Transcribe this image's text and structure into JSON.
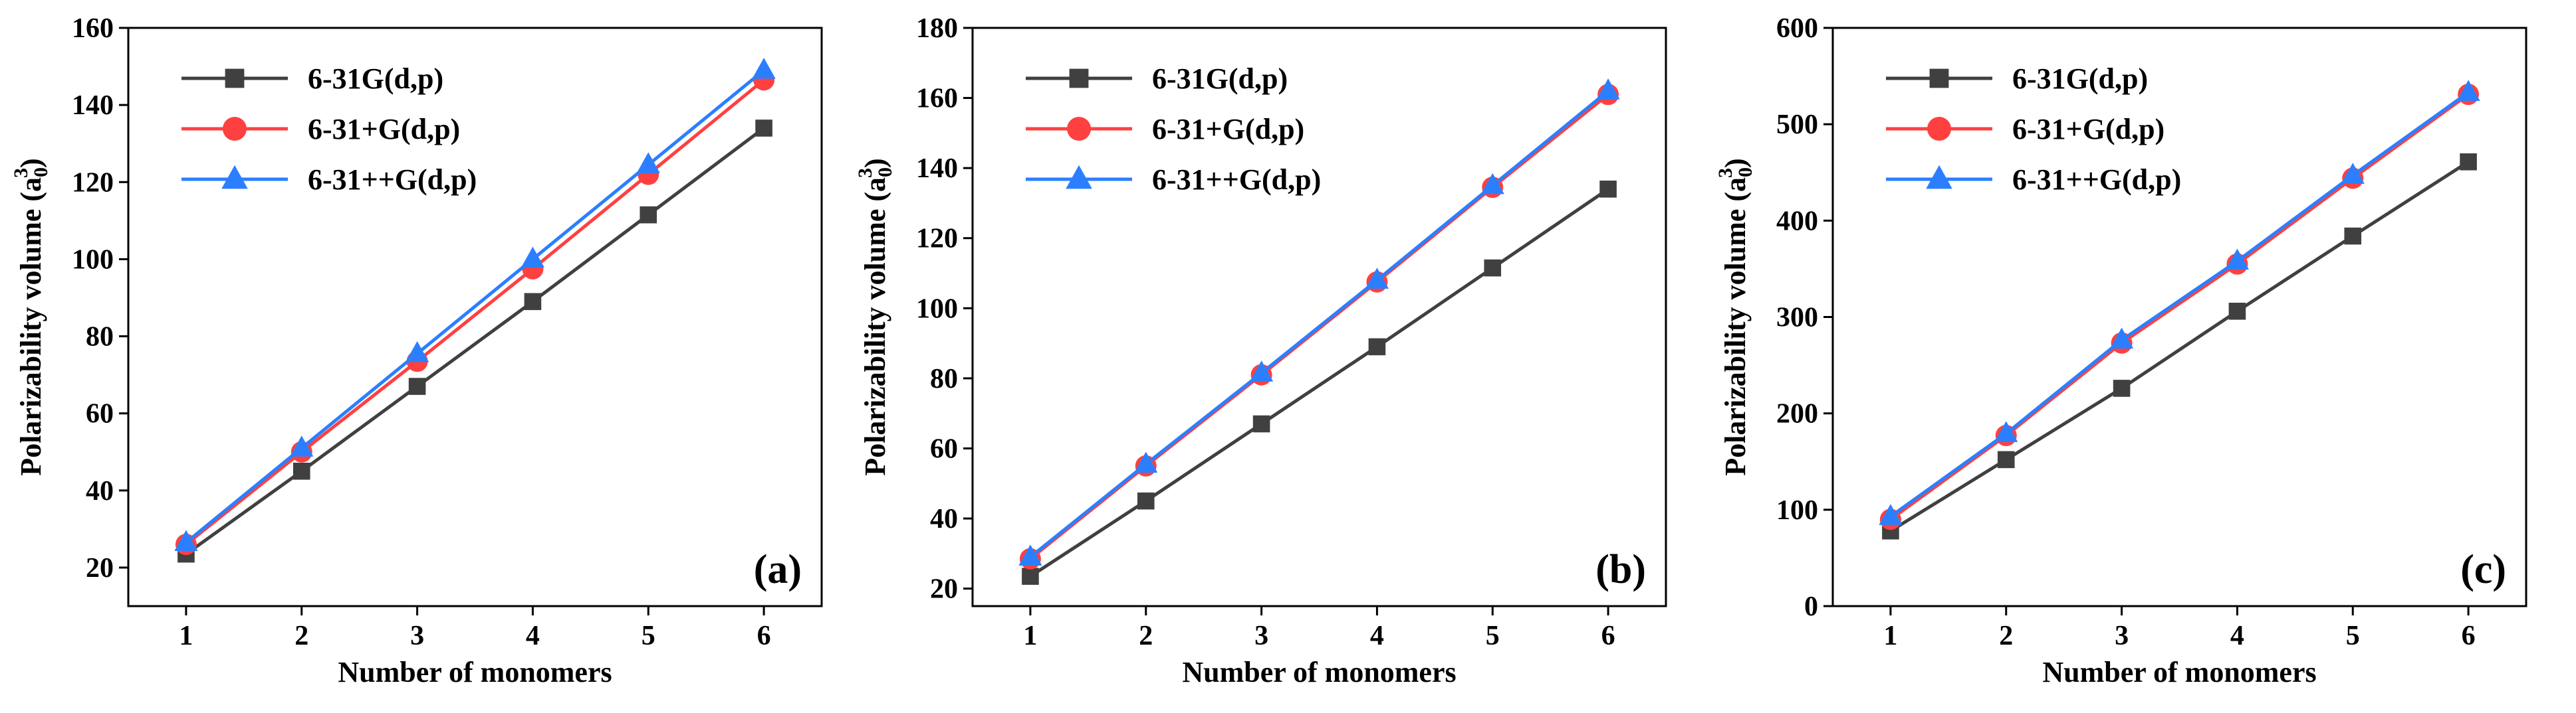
{
  "chart_data": [
    {
      "type": "line",
      "panel_label": "(a)",
      "xlabel": "Number of monomers",
      "ylabel": "Polarizability volume (a",
      "ylabel_sub": "0",
      "ylabel_sup": "3",
      "ylabel_tail": ")",
      "x": [
        1,
        2,
        3,
        4,
        5,
        6
      ],
      "xlim": [
        0.5,
        6.5
      ],
      "ylim": [
        10,
        160
      ],
      "yticks": [
        20,
        40,
        60,
        80,
        100,
        120,
        140,
        160
      ],
      "legend_position": "top-left",
      "series": [
        {
          "name": "6-31G(d,p)",
          "color": "#404040",
          "marker": "square",
          "values": [
            23.5,
            45,
            67,
            89,
            111.5,
            134
          ]
        },
        {
          "name": "6-31+G(d,p)",
          "color": "#ff4040",
          "marker": "circle",
          "values": [
            26,
            50,
            73.5,
            97.5,
            122,
            146.5
          ]
        },
        {
          "name": "6-31++G(d,p)",
          "color": "#2b7fff",
          "marker": "triangle",
          "values": [
            26.5,
            51,
            75.5,
            100,
            124.5,
            149
          ]
        }
      ]
    },
    {
      "type": "line",
      "panel_label": "(b)",
      "xlabel": "Number of monomers",
      "ylabel": "Polarizability volume (a",
      "ylabel_sub": "0",
      "ylabel_sup": "3",
      "ylabel_tail": ")",
      "x": [
        1,
        2,
        3,
        4,
        5,
        6
      ],
      "xlim": [
        0.5,
        6.5
      ],
      "ylim": [
        15,
        180
      ],
      "yticks": [
        20,
        40,
        60,
        80,
        100,
        120,
        140,
        160,
        180
      ],
      "legend_position": "top-left",
      "series": [
        {
          "name": "6-31G(d,p)",
          "color": "#404040",
          "marker": "square",
          "values": [
            23.5,
            45,
            67,
            89,
            111.5,
            134
          ]
        },
        {
          "name": "6-31+G(d,p)",
          "color": "#ff4040",
          "marker": "circle",
          "values": [
            28.5,
            55,
            81,
            107.5,
            134.5,
            161
          ]
        },
        {
          "name": "6-31++G(d,p)",
          "color": "#2b7fff",
          "marker": "triangle",
          "values": [
            29,
            55.5,
            81.5,
            108,
            135,
            162
          ]
        }
      ]
    },
    {
      "type": "line",
      "panel_label": "(c)",
      "xlabel": "Number of monomers",
      "ylabel": "Polarizability volume (a",
      "ylabel_sub": "0",
      "ylabel_sup": "3",
      "ylabel_tail": ")",
      "x": [
        1,
        2,
        3,
        4,
        5,
        6
      ],
      "xlim": [
        0.5,
        6.5
      ],
      "ylim": [
        0,
        600
      ],
      "yticks": [
        0,
        100,
        200,
        300,
        400,
        500,
        600
      ],
      "legend_position": "top-left",
      "series": [
        {
          "name": "6-31G(d,p)",
          "color": "#404040",
          "marker": "square",
          "values": [
            78,
            152,
            226,
            306,
            384,
            461
          ]
        },
        {
          "name": "6-31+G(d,p)",
          "color": "#ff4040",
          "marker": "circle",
          "values": [
            90,
            177,
            273,
            355,
            444,
            531
          ]
        },
        {
          "name": "6-31++G(d,p)",
          "color": "#2b7fff",
          "marker": "triangle",
          "values": [
            93,
            179,
            276,
            358,
            447,
            533
          ]
        }
      ]
    }
  ]
}
